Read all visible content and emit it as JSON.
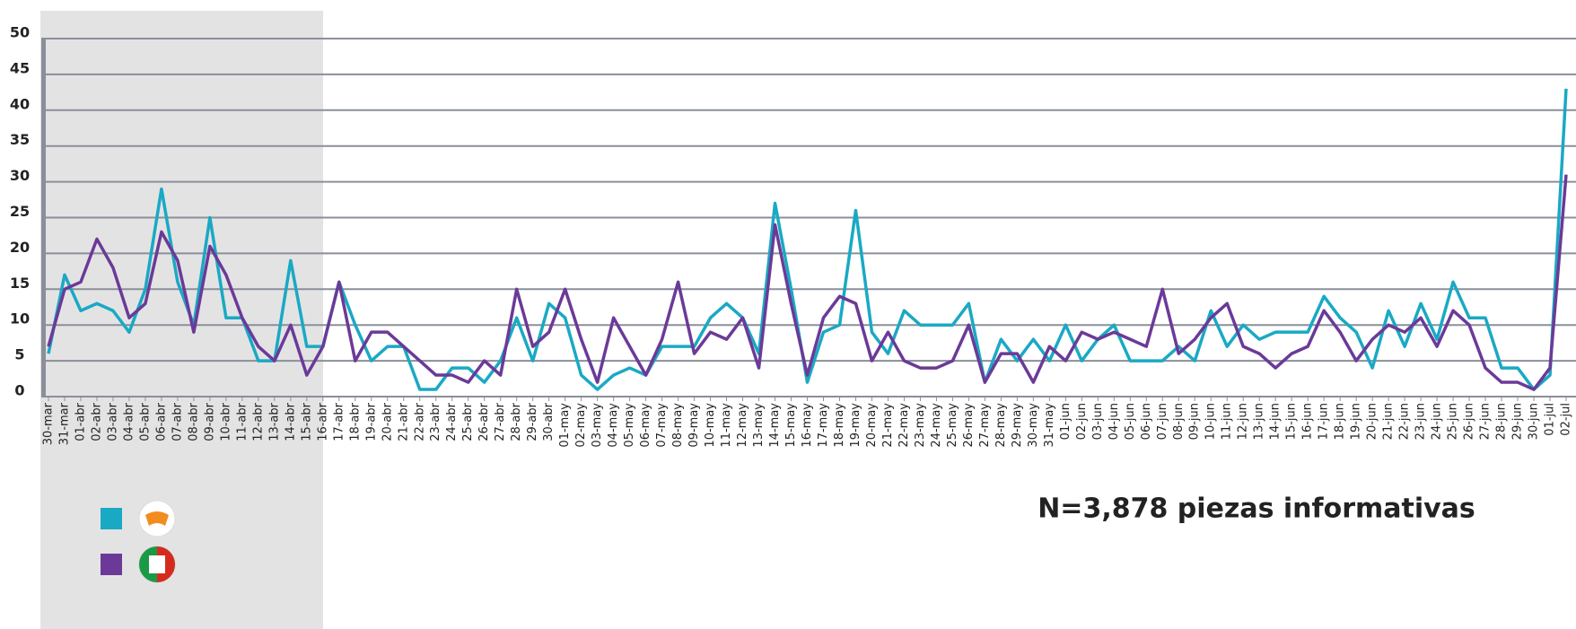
{
  "chart_data": {
    "type": "line",
    "annotation": "N=3,878 piezas informativas",
    "categories": [
      "30-mar",
      "31-mar",
      "01-abr",
      "02-abr",
      "03-abr",
      "04-abr",
      "05-abr",
      "06-abr",
      "07-abr",
      "08-abr",
      "09-abr",
      "10-abr",
      "11-abr",
      "12-abr",
      "13-abr",
      "14-abr",
      "15-abr",
      "16-abr",
      "17-abr",
      "18-abr",
      "19-abr",
      "20-abr",
      "21-abr",
      "22-abr",
      "23-abr",
      "24-abr",
      "25-abr",
      "26-abr",
      "27-abr",
      "28-abr",
      "29-abr",
      "30-abr",
      "01-may",
      "02-may",
      "03-may",
      "04-may",
      "05-may",
      "06-may",
      "07-may",
      "08-may",
      "09-may",
      "10-may",
      "11-may",
      "12-may",
      "13-may",
      "14-may",
      "15-may",
      "16-may",
      "17-may",
      "18-may",
      "19-may",
      "20-may",
      "21-may",
      "22-may",
      "23-may",
      "24-may",
      "25-may",
      "26-may",
      "27-may",
      "28-may",
      "29-may",
      "30-may",
      "31-may",
      "01-jun",
      "02-jun",
      "03-jun",
      "04-jun",
      "05-jun",
      "06-jun",
      "07-jun",
      "08-jun",
      "09-jun",
      "10-jun",
      "11-jun",
      "12-jun",
      "13-jun",
      "14-jun",
      "15-jun",
      "16-jun",
      "17-jun",
      "18-jun",
      "19-jun",
      "20-jun",
      "21-jun",
      "22-jun",
      "23-jun",
      "24-jun",
      "25-jun",
      "26-jun",
      "27-jun",
      "28-jun",
      "29-jun",
      "30-jun",
      "01-jul",
      "02-jul"
    ],
    "series": [
      {
        "color": "#1aa9c4",
        "values": [
          6,
          17,
          12,
          13,
          12,
          9,
          15,
          29,
          16,
          10,
          25,
          11,
          11,
          5,
          5,
          19,
          7,
          7,
          16,
          10,
          5,
          7,
          7,
          1,
          1,
          4,
          4,
          2,
          5,
          11,
          5,
          13,
          11,
          3,
          1,
          3,
          4,
          3,
          7,
          7,
          7,
          11,
          13,
          11,
          6,
          27,
          15,
          2,
          9,
          10,
          26,
          9,
          6,
          12,
          10,
          10,
          10,
          13,
          2,
          8,
          5,
          8,
          5,
          10,
          5,
          8,
          10,
          5,
          5,
          5,
          7,
          5,
          12,
          7,
          10,
          8,
          9,
          9,
          9,
          14,
          11,
          9,
          4,
          12,
          7,
          13,
          8,
          16,
          11,
          11,
          4,
          4,
          1,
          3,
          43
        ]
      },
      {
        "color": "#6b3a98",
        "values": [
          7,
          15,
          16,
          22,
          18,
          11,
          13,
          23,
          19,
          9,
          21,
          17,
          11,
          7,
          5,
          10,
          3,
          7,
          16,
          5,
          9,
          9,
          7,
          5,
          3,
          3,
          2,
          5,
          3,
          15,
          7,
          9,
          15,
          8,
          2,
          11,
          7,
          3,
          8,
          16,
          6,
          9,
          8,
          11,
          4,
          24,
          13,
          3,
          11,
          14,
          13,
          5,
          9,
          5,
          4,
          4,
          5,
          10,
          2,
          6,
          6,
          2,
          7,
          5,
          9,
          8,
          9,
          8,
          7,
          15,
          6,
          8,
          11,
          13,
          7,
          6,
          4,
          6,
          7,
          12,
          9,
          5,
          8,
          10,
          9,
          11,
          7,
          12,
          10,
          4,
          2,
          2,
          1,
          4,
          31
        ]
      }
    ],
    "ylim": [
      0,
      50
    ],
    "yticks": [
      0,
      5,
      10,
      15,
      20,
      25,
      30,
      35,
      40,
      45,
      50
    ],
    "grid": true
  }
}
